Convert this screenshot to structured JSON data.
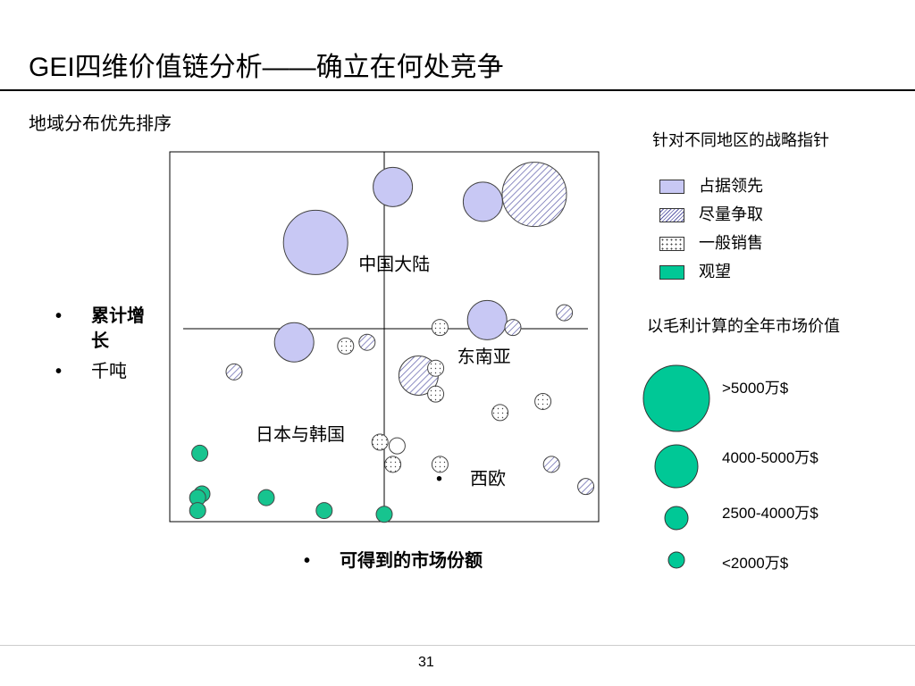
{
  "slide": {
    "title": "GEI四维价值链分析——确立在何处竞争",
    "subtitle": "地域分布优先排序",
    "page_number": "31",
    "bullet_char": "•"
  },
  "axes": {
    "y_label": "累计增长",
    "y_unit": "千吨",
    "x_label": "可得到的市场份额"
  },
  "legend": {
    "strategy_title": "针对不同地区的战略指针",
    "strategy_items": [
      {
        "key": "lead",
        "label": "占据领先"
      },
      {
        "key": "compete",
        "label": "尽量争取"
      },
      {
        "key": "sell",
        "label": "一般销售"
      },
      {
        "key": "watch",
        "label": "观望"
      }
    ],
    "size_title": "以毛利计算的全年市场价值",
    "size_items": [
      {
        "key": "xl",
        "label": ">5000万$"
      },
      {
        "key": "l",
        "label": "4000-5000万$"
      },
      {
        "key": "m",
        "label": "2500-4000万$"
      },
      {
        "key": "s",
        "label": "<2000万$"
      }
    ]
  },
  "colors": {
    "lead_fill": "#c8c8f4",
    "compete_hatch": "#5a5aa8",
    "sell_dots": "#444444",
    "watch_fill": "#17c48f",
    "watch_legend_fill": "#00c896",
    "outline": "#444444"
  },
  "chart_data": {
    "type": "scatter",
    "title": "",
    "xlabel": "可得到的市场份额",
    "ylabel": "累计增长 千吨",
    "grid": false,
    "region_labels": [
      {
        "text": "中国大陆",
        "x": 0.44,
        "y": 0.68
      },
      {
        "text": "东南亚",
        "x": 0.67,
        "y": 0.43
      },
      {
        "text": "日本与韩国",
        "x": 0.2,
        "y": 0.22
      },
      {
        "text": "西欧",
        "x": 0.7,
        "y": 0.1,
        "bullet": true
      }
    ],
    "points": [
      {
        "x": 0.52,
        "y": 0.905,
        "size": "l",
        "category": "lead"
      },
      {
        "x": 0.73,
        "y": 0.865,
        "size": "l",
        "category": "lead"
      },
      {
        "x": 0.85,
        "y": 0.885,
        "size": "xl",
        "category": "compete"
      },
      {
        "x": 0.34,
        "y": 0.755,
        "size": "xl",
        "category": "lead"
      },
      {
        "x": 0.74,
        "y": 0.545,
        "size": "l",
        "category": "lead"
      },
      {
        "x": 0.92,
        "y": 0.565,
        "size": "s",
        "category": "compete"
      },
      {
        "x": 0.8,
        "y": 0.525,
        "size": "s",
        "category": "compete"
      },
      {
        "x": 0.63,
        "y": 0.525,
        "size": "s",
        "category": "sell"
      },
      {
        "x": 0.29,
        "y": 0.485,
        "size": "l",
        "category": "lead"
      },
      {
        "x": 0.46,
        "y": 0.485,
        "size": "s",
        "category": "compete"
      },
      {
        "x": 0.41,
        "y": 0.475,
        "size": "s",
        "category": "sell"
      },
      {
        "x": 0.15,
        "y": 0.405,
        "size": "s",
        "category": "compete"
      },
      {
        "x": 0.58,
        "y": 0.395,
        "size": "l",
        "category": "compete"
      },
      {
        "x": 0.62,
        "y": 0.415,
        "size": "s",
        "category": "sell"
      },
      {
        "x": 0.62,
        "y": 0.345,
        "size": "s",
        "category": "sell"
      },
      {
        "x": 0.87,
        "y": 0.325,
        "size": "s",
        "category": "sell"
      },
      {
        "x": 0.77,
        "y": 0.295,
        "size": "s",
        "category": "sell"
      },
      {
        "x": 0.49,
        "y": 0.215,
        "size": "s",
        "category": "sell"
      },
      {
        "x": 0.53,
        "y": 0.205,
        "size": "s",
        "category": "empty"
      },
      {
        "x": 0.52,
        "y": 0.155,
        "size": "s",
        "category": "sell"
      },
      {
        "x": 0.63,
        "y": 0.155,
        "size": "s",
        "category": "sell"
      },
      {
        "x": 0.89,
        "y": 0.155,
        "size": "s",
        "category": "compete"
      },
      {
        "x": 0.97,
        "y": 0.095,
        "size": "s",
        "category": "compete"
      },
      {
        "x": 0.07,
        "y": 0.185,
        "size": "s",
        "category": "watch"
      },
      {
        "x": 0.075,
        "y": 0.075,
        "size": "s",
        "category": "watch"
      },
      {
        "x": 0.065,
        "y": 0.065,
        "size": "s",
        "category": "watch"
      },
      {
        "x": 0.065,
        "y": 0.03,
        "size": "s",
        "category": "watch"
      },
      {
        "x": 0.225,
        "y": 0.065,
        "size": "s",
        "category": "watch"
      },
      {
        "x": 0.36,
        "y": 0.03,
        "size": "s",
        "category": "watch"
      },
      {
        "x": 0.5,
        "y": 0.02,
        "size": "s",
        "category": "watch"
      }
    ]
  }
}
